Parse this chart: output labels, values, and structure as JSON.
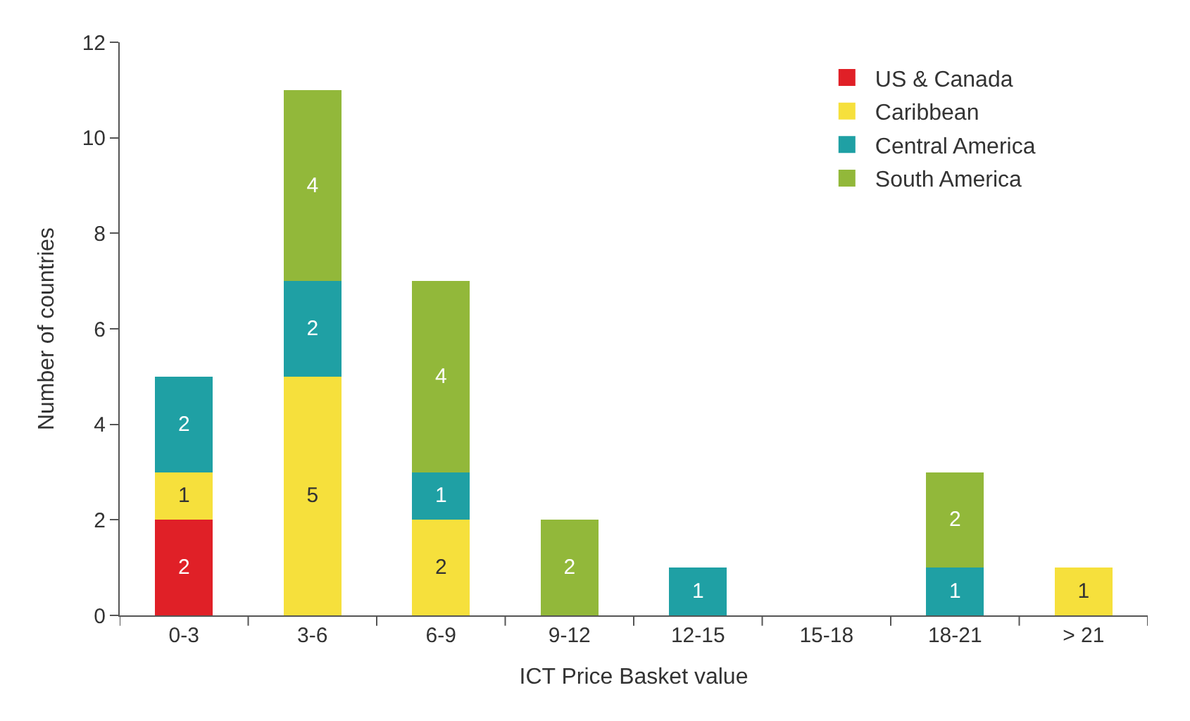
{
  "chart_data": {
    "type": "bar",
    "stacked": true,
    "xlabel": "ICT Price Basket value",
    "ylabel": "Number of countries",
    "categories": [
      "0-3",
      "3-6",
      "6-9",
      "9-12",
      "12-15",
      "15-18",
      "18-21",
      "> 21"
    ],
    "series": [
      {
        "name": "US & Canada",
        "color": "#e02027",
        "values": [
          2,
          null,
          null,
          null,
          null,
          null,
          null,
          null
        ]
      },
      {
        "name": "Caribbean",
        "color": "#f6e03c",
        "values": [
          1,
          5,
          2,
          null,
          null,
          null,
          null,
          1
        ]
      },
      {
        "name": "Central America",
        "color": "#1fa0a4",
        "values": [
          2,
          2,
          1,
          null,
          1,
          null,
          1,
          null
        ]
      },
      {
        "name": "South America",
        "color": "#92b83a",
        "values": [
          null,
          4,
          4,
          2,
          null,
          null,
          2,
          null
        ]
      }
    ],
    "ylim": [
      0,
      12
    ],
    "yticks": [
      0,
      2,
      4,
      6,
      8,
      10,
      12
    ],
    "legend": "top right",
    "data_labels": true
  }
}
